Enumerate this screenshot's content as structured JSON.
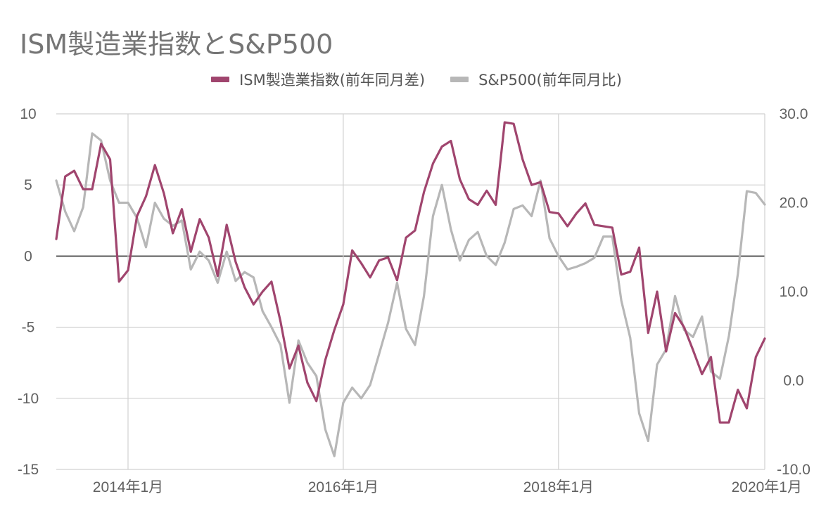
{
  "chart_data": {
    "type": "line",
    "title": "ISM製造業指数とS&P500",
    "x_tick_labels": [
      "2014年1月",
      "2016年1月",
      "2018年1月",
      "2020年1月"
    ],
    "left_ylim": [
      -15,
      10
    ],
    "left_ticks": [
      "10",
      "5",
      "0",
      "-5",
      "-10",
      "-15"
    ],
    "right_ylim": [
      -10,
      30
    ],
    "right_ticks": [
      "30.0",
      "20.0",
      "10.0",
      "0.0",
      "-10.0"
    ],
    "x_range_months": [
      "2013-05",
      "2020-01"
    ],
    "grid": true,
    "legend_position": "top",
    "colors": {
      "ism": "#a0456e",
      "sp": "#b7b7b7",
      "zero": "#333333",
      "grid": "#d0d0d0"
    },
    "series": [
      {
        "name": "ISM製造業指数(前年同月差)",
        "axis": "left",
        "color": "#a0456e",
        "values": [
          1.2,
          5.6,
          6.0,
          4.7,
          4.7,
          7.9,
          6.8,
          -1.8,
          -1.0,
          2.8,
          4.2,
          6.4,
          4.4,
          1.6,
          3.3,
          0.3,
          2.6,
          1.3,
          -1.4,
          2.2,
          -0.4,
          -2.2,
          -3.4,
          -2.5,
          -1.8,
          -4.6,
          -7.9,
          -6.3,
          -8.9,
          -10.2,
          -7.3,
          -5.2,
          -3.4,
          0.4,
          -0.5,
          -1.5,
          -0.3,
          -0.1,
          -1.7,
          1.3,
          1.8,
          4.5,
          6.5,
          7.7,
          8.1,
          5.4,
          4.0,
          3.6,
          4.6,
          3.6,
          9.4,
          9.3,
          6.8,
          5.0,
          5.2,
          3.1,
          3.0,
          2.1,
          3.0,
          3.7,
          2.2,
          2.1,
          2.0,
          -1.3,
          -1.1,
          0.6,
          -5.4,
          -2.5,
          -6.7,
          -4.0,
          -5.0,
          -6.6,
          -8.3,
          -7.1,
          -11.7,
          -11.7,
          -9.4,
          -10.7,
          -7.1,
          -5.8
        ]
      },
      {
        "name": "S&P500(前年同月比)",
        "axis": "right",
        "color": "#b7b7b7",
        "values": [
          22.5,
          19.0,
          16.8,
          19.5,
          27.8,
          27.0,
          22.5,
          20.0,
          20.0,
          18.3,
          15.0,
          20.0,
          18.2,
          17.4,
          18.0,
          12.5,
          14.5,
          13.5,
          11.0,
          14.5,
          11.2,
          12.2,
          11.6,
          7.8,
          6.0,
          4.0,
          -2.5,
          4.5,
          2.0,
          0.5,
          -5.5,
          -8.5,
          -2.5,
          -0.8,
          -2.0,
          -0.5,
          3.0,
          6.5,
          11.0,
          5.8,
          4.0,
          9.5,
          18.5,
          22.0,
          17.0,
          13.5,
          15.8,
          16.7,
          14.0,
          13.0,
          15.5,
          19.3,
          19.7,
          18.5,
          22.5,
          16.0,
          14.0,
          12.5,
          12.8,
          13.2,
          13.8,
          16.2,
          16.2,
          9.0,
          4.8,
          -3.7,
          -6.8,
          1.8,
          3.5,
          9.5,
          5.7,
          4.9,
          7.2,
          1.0,
          0.2,
          5.0,
          12.0,
          21.3,
          21.1,
          19.8
        ]
      }
    ]
  }
}
